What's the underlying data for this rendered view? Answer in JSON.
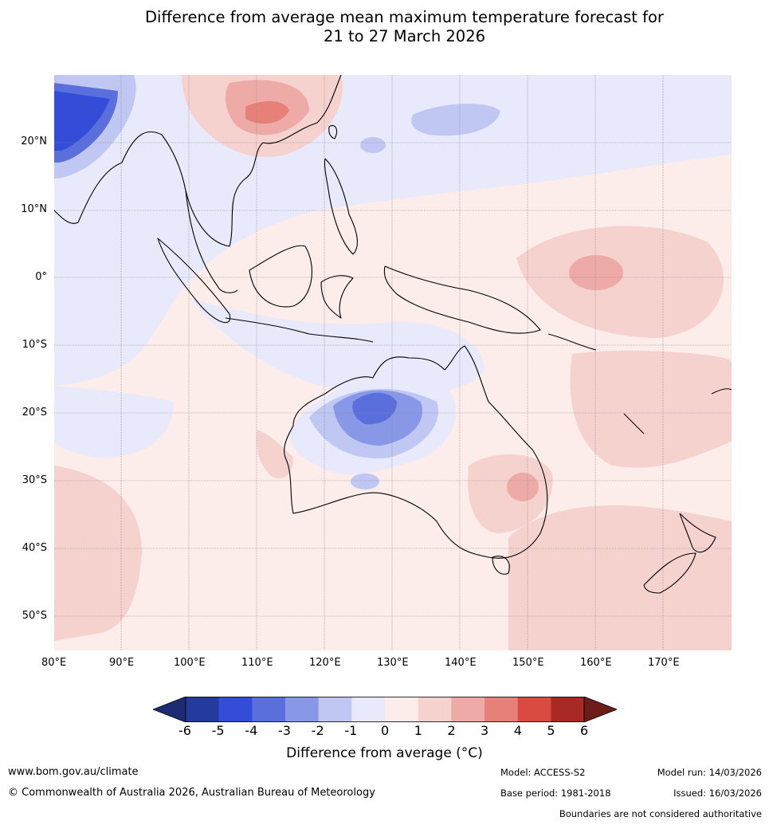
{
  "title": {
    "line1": "Difference from average mean maximum temperature forecast for",
    "line2": "21 to 27 March 2026"
  },
  "map": {
    "lat_labels": [
      "20°N",
      "10°N",
      "0°",
      "10°S",
      "20°S",
      "30°S",
      "40°S",
      "50°S"
    ],
    "lon_labels": [
      "80°E",
      "90°E",
      "100°E",
      "110°E",
      "120°E",
      "130°E",
      "140°E",
      "150°E",
      "160°E",
      "170°E"
    ],
    "extent": {
      "lon": [
        80,
        180
      ],
      "lat": [
        -55,
        30
      ]
    },
    "land_color": "#000000",
    "grid_color": "#888888"
  },
  "colorbar": {
    "ticks": [
      "-6",
      "-5",
      "-4",
      "-3",
      "-2",
      "-1",
      "0",
      "1",
      "2",
      "3",
      "4",
      "5",
      "6"
    ],
    "colors": [
      "#243a9c",
      "#334dd8",
      "#5a6fdb",
      "#8898e6",
      "#c0c7f3",
      "#e8eafb",
      "#fcecea",
      "#f6d2cf",
      "#eeaaa6",
      "#e78079",
      "#d94a40",
      "#a92a25"
    ],
    "under_color": "#1d2b72",
    "over_color": "#6e1c1a",
    "label": "Difference from average ($^\\circ$C)",
    "label_text": "Difference from average (°C)"
  },
  "footer": {
    "website": "www.bom.gov.au/climate",
    "copyright": "© Commonwealth of Australia 2026, Australian Bureau of Meteorology",
    "model": "Model: ACCESS-S2",
    "base_period": "Base period: 1981-2018",
    "model_run": "Model run: 14/03/2026",
    "issued": "Issued: 16/03/2026",
    "boundaries_note": "Boundaries are not considered authoritative"
  }
}
